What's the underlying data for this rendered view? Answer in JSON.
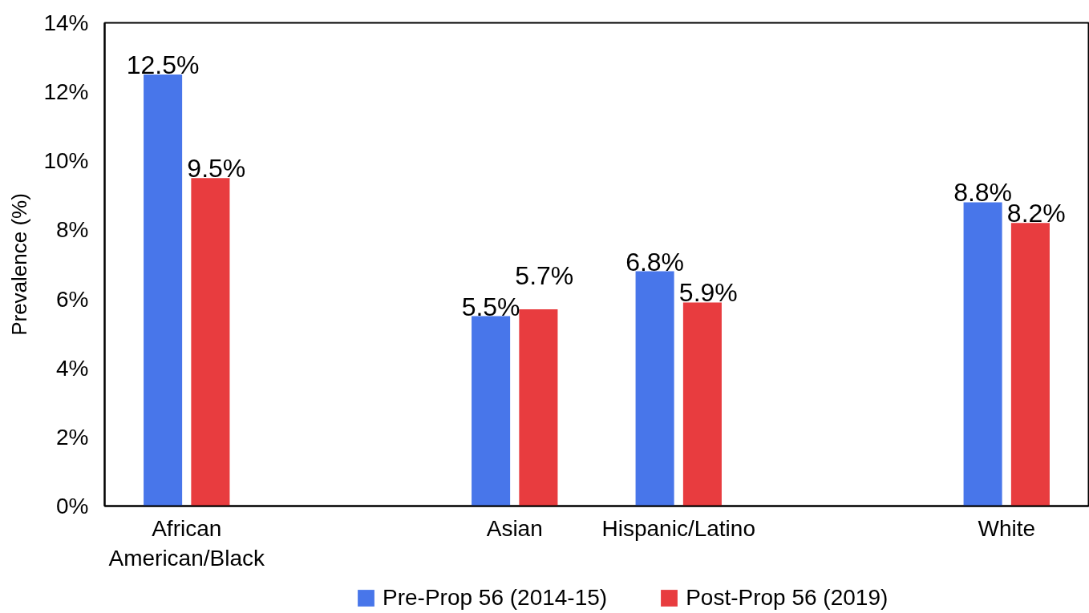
{
  "chart_data": {
    "type": "bar",
    "ylabel": "Prevalence (%)",
    "categories": [
      "African American/Black",
      null,
      "Asian",
      "Hispanic/Latino",
      null,
      "White"
    ],
    "series": [
      {
        "name": "Pre-Prop 56 (2014-15)",
        "color": "#4876ea",
        "values": [
          12.5,
          null,
          5.5,
          6.8,
          null,
          8.8
        ],
        "value_labels": [
          "12.5%",
          null,
          "5.5%",
          "6.8%",
          null,
          "8.8%"
        ]
      },
      {
        "name": "Post-Prop 56 (2019)",
        "color": "#e83c3f",
        "values": [
          9.5,
          null,
          5.7,
          5.9,
          null,
          8.2
        ],
        "value_labels": [
          "9.5%",
          null,
          "5.7%",
          "5.9%",
          null,
          "8.2%"
        ]
      }
    ],
    "ylim": [
      0,
      14
    ],
    "yticks": [
      {
        "value": 0,
        "label": "0%"
      },
      {
        "value": 2,
        "label": "2%"
      },
      {
        "value": 4,
        "label": "4%"
      },
      {
        "value": 6,
        "label": "6%"
      },
      {
        "value": 8,
        "label": "8%"
      },
      {
        "value": 10,
        "label": "10%"
      },
      {
        "value": 12,
        "label": "12%"
      },
      {
        "value": 14,
        "label": "14%"
      }
    ],
    "legend": "bottom"
  }
}
